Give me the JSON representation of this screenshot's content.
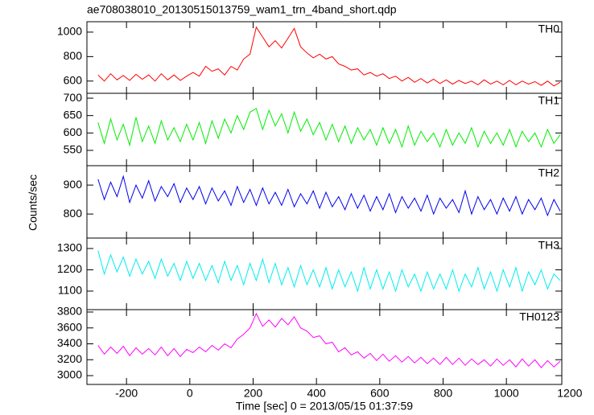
{
  "chart_data": {
    "type": "line",
    "title": "ae708038010_20130515013759_wam1_trn_4band_short.qdp",
    "xlabel": "Time [sec] 0 = 2013/05/15 01:37:59",
    "ylabel": "Counts/sec",
    "xlim": [
      -325,
      1175
    ],
    "xticks": [
      -200,
      0,
      200,
      400,
      600,
      800,
      1000,
      1200
    ],
    "x": [
      -290,
      -270,
      -250,
      -230,
      -210,
      -190,
      -170,
      -150,
      -130,
      -110,
      -90,
      -70,
      -50,
      -30,
      -10,
      10,
      30,
      50,
      70,
      90,
      110,
      130,
      150,
      170,
      190,
      210,
      230,
      250,
      270,
      290,
      310,
      330,
      350,
      370,
      390,
      410,
      430,
      450,
      470,
      490,
      510,
      530,
      550,
      570,
      590,
      610,
      630,
      650,
      670,
      690,
      710,
      730,
      750,
      770,
      790,
      810,
      830,
      850,
      870,
      890,
      910,
      930,
      950,
      970,
      990,
      1010,
      1030,
      1050,
      1070,
      1090,
      1110,
      1130,
      1150,
      1170
    ],
    "panels": [
      {
        "name": "TH0",
        "color": "#ff0000",
        "ylim": [
          500,
          1085
        ],
        "yticks": [
          600,
          800,
          1000
        ],
        "values": [
          650,
          600,
          660,
          610,
          645,
          605,
          655,
          615,
          650,
          600,
          660,
          610,
          650,
          605,
          640,
          670,
          640,
          720,
          680,
          700,
          650,
          720,
          690,
          780,
          820,
          1040,
          960,
          880,
          930,
          870,
          950,
          1030,
          880,
          830,
          790,
          820,
          780,
          800,
          740,
          720,
          690,
          700,
          650,
          670,
          640,
          660,
          620,
          640,
          600,
          630,
          590,
          620,
          585,
          615,
          580,
          610,
          575,
          605,
          580,
          600,
          570,
          610,
          575,
          600,
          570,
          605,
          570,
          600,
          575,
          595,
          565,
          600,
          560,
          590
        ]
      },
      {
        "name": "TH1",
        "color": "#00ee00",
        "ylim": [
          506,
          714
        ],
        "yticks": [
          550,
          600,
          650,
          700
        ],
        "values": [
          630,
          570,
          640,
          580,
          625,
          565,
          645,
          575,
          620,
          570,
          635,
          580,
          615,
          575,
          625,
          580,
          630,
          570,
          635,
          585,
          640,
          600,
          650,
          610,
          660,
          670,
          610,
          665,
          620,
          655,
          600,
          660,
          605,
          640,
          595,
          630,
          580,
          625,
          575,
          620,
          570,
          615,
          580,
          610,
          565,
          615,
          570,
          610,
          560,
          620,
          565,
          605,
          575,
          600,
          560,
          610,
          565,
          600,
          570,
          615,
          560,
          605,
          570,
          600,
          565,
          610,
          560,
          605,
          575,
          600,
          560,
          610,
          570,
          595
        ]
      },
      {
        "name": "TH2",
        "color": "#0000ee",
        "ylim": [
          717,
          967
        ],
        "yticks": [
          800,
          900
        ],
        "values": [
          920,
          850,
          910,
          860,
          930,
          840,
          900,
          855,
          915,
          845,
          895,
          860,
          905,
          840,
          890,
          850,
          895,
          835,
          890,
          845,
          880,
          830,
          895,
          840,
          885,
          830,
          890,
          835,
          875,
          830,
          885,
          825,
          870,
          835,
          880,
          820,
          875,
          825,
          860,
          815,
          870,
          820,
          865,
          810,
          860,
          815,
          870,
          805,
          860,
          820,
          855,
          810,
          865,
          800,
          855,
          820,
          850,
          805,
          880,
          800,
          860,
          815,
          850,
          800,
          855,
          810,
          860,
          800,
          850,
          815,
          855,
          795,
          850,
          810
        ]
      },
      {
        "name": "TH3",
        "color": "#00eeee",
        "ylim": [
          1013,
          1349
        ],
        "yticks": [
          1100,
          1200,
          1300
        ],
        "values": [
          1290,
          1180,
          1270,
          1190,
          1260,
          1170,
          1250,
          1180,
          1240,
          1160,
          1250,
          1170,
          1230,
          1150,
          1240,
          1160,
          1230,
          1150,
          1220,
          1140,
          1240,
          1150,
          1220,
          1130,
          1230,
          1150,
          1250,
          1140,
          1230,
          1130,
          1210,
          1120,
          1220,
          1130,
          1200,
          1120,
          1210,
          1110,
          1200,
          1120,
          1190,
          1100,
          1210,
          1110,
          1200,
          1110,
          1190,
          1100,
          1200,
          1120,
          1180,
          1100,
          1190,
          1110,
          1180,
          1110,
          1200,
          1100,
          1180,
          1120,
          1210,
          1110,
          1190,
          1100,
          1200,
          1120,
          1210,
          1100,
          1190,
          1130,
          1200,
          1110,
          1180,
          1150
        ]
      },
      {
        "name": "TH0123",
        "color": "#ff00ff",
        "ylim": [
          2889,
          3830
        ],
        "yticks": [
          3000,
          3200,
          3400,
          3600,
          3800
        ],
        "values": [
          3380,
          3270,
          3360,
          3280,
          3370,
          3250,
          3350,
          3270,
          3340,
          3260,
          3360,
          3250,
          3340,
          3240,
          3330,
          3290,
          3360,
          3300,
          3380,
          3320,
          3400,
          3350,
          3460,
          3520,
          3600,
          3780,
          3620,
          3700,
          3610,
          3720,
          3640,
          3740,
          3600,
          3560,
          3480,
          3500,
          3400,
          3420,
          3300,
          3350,
          3260,
          3300,
          3220,
          3280,
          3190,
          3270,
          3180,
          3250,
          3170,
          3240,
          3160,
          3230,
          3150,
          3220,
          3140,
          3230,
          3140,
          3220,
          3130,
          3210,
          3140,
          3200,
          3120,
          3210,
          3130,
          3200,
          3110,
          3210,
          3120,
          3200,
          3100,
          3190,
          3110,
          3180
        ]
      }
    ]
  }
}
